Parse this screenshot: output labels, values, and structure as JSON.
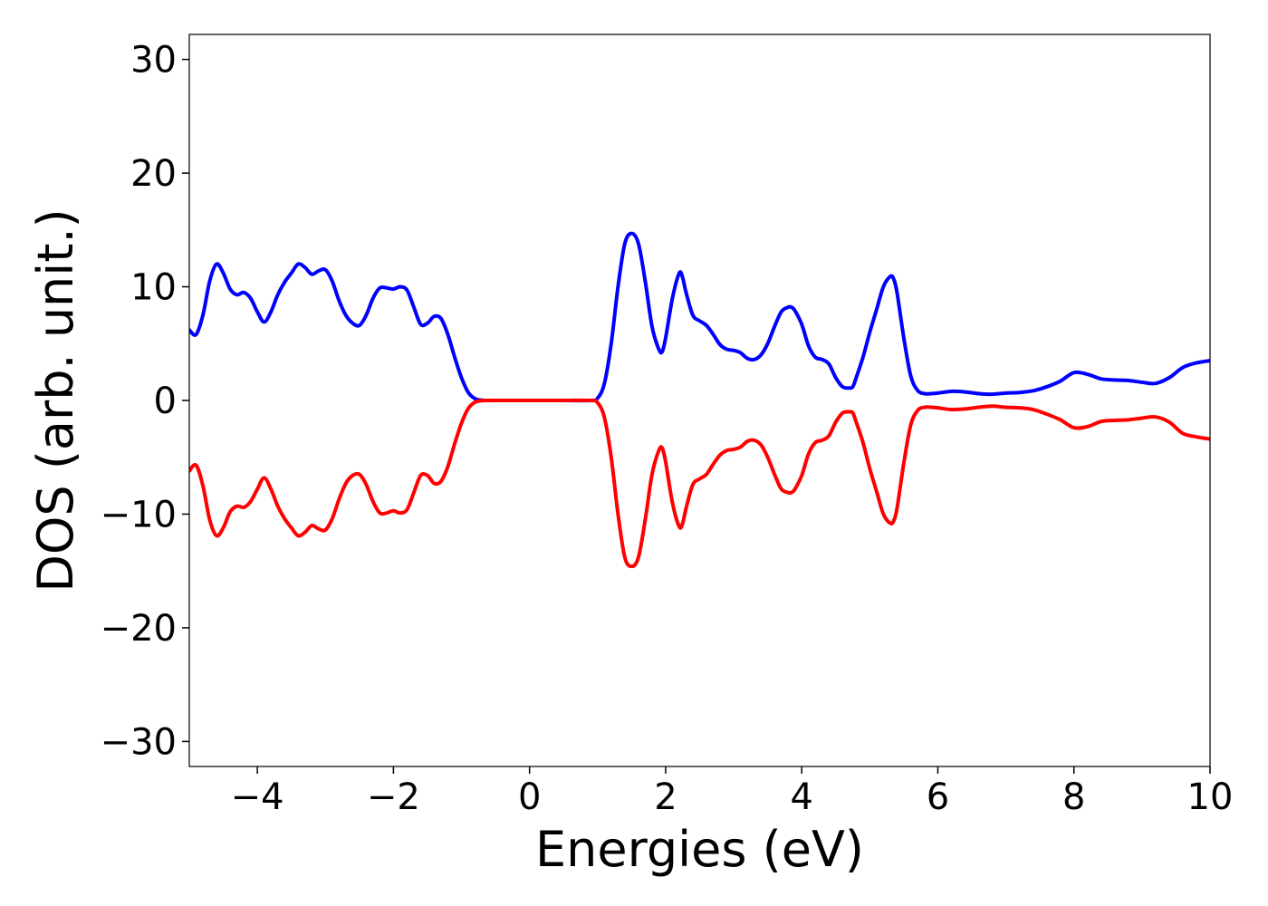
{
  "chart_data": {
    "type": "line",
    "title": "",
    "xlabel": "Energies (eV)",
    "ylabel": "DOS (arb. unit.)",
    "xlim": [
      -5,
      10
    ],
    "ylim": [
      -32.2,
      32.2
    ],
    "xticks": [
      -4,
      -2,
      0,
      2,
      4,
      6,
      8,
      10
    ],
    "xtick_labels": [
      "−4",
      "−2",
      "0",
      "2",
      "4",
      "6",
      "8",
      "10"
    ],
    "yticks": [
      -30,
      -20,
      -10,
      0,
      10,
      20,
      30
    ],
    "ytick_labels": [
      "−30",
      "−20",
      "−10",
      "0",
      "10",
      "20",
      "30"
    ],
    "grid": false,
    "legend": "none",
    "series": [
      {
        "color": "#0000ff",
        "x": [
          -5.0,
          -4.9,
          -4.8,
          -4.7,
          -4.6,
          -4.5,
          -4.4,
          -4.3,
          -4.2,
          -4.1,
          -4.0,
          -3.9,
          -3.8,
          -3.7,
          -3.6,
          -3.5,
          -3.4,
          -3.3,
          -3.2,
          -3.1,
          -3.0,
          -2.9,
          -2.8,
          -2.7,
          -2.6,
          -2.5,
          -2.4,
          -2.3,
          -2.2,
          -2.1,
          -2.0,
          -1.9,
          -1.8,
          -1.7,
          -1.6,
          -1.5,
          -1.4,
          -1.3,
          -1.2,
          -1.1,
          -1.0,
          -0.9,
          -0.8,
          -0.7,
          -0.6,
          -0.5,
          -0.3,
          0.0,
          0.5,
          0.9,
          1.0,
          1.1,
          1.2,
          1.3,
          1.4,
          1.5,
          1.6,
          1.7,
          1.8,
          1.9,
          1.95,
          2.0,
          2.1,
          2.2,
          2.25,
          2.3,
          2.4,
          2.5,
          2.6,
          2.7,
          2.8,
          2.9,
          3.0,
          3.1,
          3.2,
          3.3,
          3.4,
          3.5,
          3.6,
          3.7,
          3.8,
          3.85,
          3.9,
          4.0,
          4.1,
          4.2,
          4.3,
          4.4,
          4.5,
          4.6,
          4.7,
          4.75,
          4.8,
          4.9,
          5.0,
          5.1,
          5.2,
          5.3,
          5.35,
          5.4,
          5.5,
          5.6,
          5.7,
          5.8,
          5.9,
          6.0,
          6.2,
          6.4,
          6.6,
          6.8,
          7.0,
          7.2,
          7.4,
          7.6,
          7.8,
          8.0,
          8.2,
          8.4,
          8.6,
          8.8,
          9.0,
          9.2,
          9.4,
          9.6,
          9.8,
          10.0
        ],
        "y": [
          6.2,
          5.8,
          7.5,
          10.5,
          12.0,
          11.2,
          9.8,
          9.3,
          9.5,
          9.0,
          7.8,
          6.9,
          7.8,
          9.3,
          10.4,
          11.2,
          12.0,
          11.7,
          11.1,
          11.4,
          11.5,
          10.5,
          8.8,
          7.5,
          6.8,
          6.6,
          7.5,
          9.0,
          9.9,
          9.9,
          9.8,
          10.0,
          9.7,
          8.2,
          6.7,
          6.8,
          7.4,
          7.2,
          5.8,
          3.8,
          2.0,
          0.7,
          0.15,
          0.02,
          0.0,
          0.0,
          0.0,
          0.0,
          0.0,
          0.0,
          0.2,
          1.5,
          5.0,
          10.0,
          13.8,
          14.7,
          13.8,
          10.5,
          6.5,
          4.5,
          4.3,
          5.5,
          9.0,
          11.2,
          10.8,
          9.5,
          7.5,
          7.0,
          6.6,
          5.8,
          4.9,
          4.5,
          4.4,
          4.2,
          3.7,
          3.6,
          4.0,
          5.0,
          6.5,
          7.8,
          8.2,
          8.2,
          7.9,
          6.7,
          4.8,
          3.8,
          3.6,
          3.2,
          2.0,
          1.2,
          1.1,
          1.2,
          2.0,
          3.8,
          6.0,
          8.0,
          10.0,
          10.9,
          10.7,
          9.5,
          5.5,
          2.2,
          0.9,
          0.6,
          0.6,
          0.65,
          0.8,
          0.75,
          0.6,
          0.55,
          0.65,
          0.7,
          0.85,
          1.2,
          1.7,
          2.45,
          2.3,
          1.9,
          1.8,
          1.75,
          1.6,
          1.5,
          2.0,
          2.9,
          3.3,
          3.5
        ]
      },
      {
        "color": "#ff0000",
        "x": [
          -5.0,
          -4.9,
          -4.8,
          -4.7,
          -4.6,
          -4.5,
          -4.4,
          -4.3,
          -4.2,
          -4.1,
          -4.0,
          -3.9,
          -3.8,
          -3.7,
          -3.6,
          -3.5,
          -3.4,
          -3.3,
          -3.2,
          -3.1,
          -3.0,
          -2.9,
          -2.8,
          -2.7,
          -2.6,
          -2.5,
          -2.4,
          -2.3,
          -2.2,
          -2.1,
          -2.0,
          -1.9,
          -1.8,
          -1.7,
          -1.6,
          -1.5,
          -1.4,
          -1.3,
          -1.2,
          -1.1,
          -1.0,
          -0.9,
          -0.8,
          -0.7,
          -0.6,
          -0.5,
          -0.3,
          0.0,
          0.5,
          0.9,
          1.0,
          1.1,
          1.2,
          1.3,
          1.4,
          1.5,
          1.6,
          1.7,
          1.8,
          1.9,
          1.95,
          2.0,
          2.1,
          2.2,
          2.25,
          2.3,
          2.4,
          2.5,
          2.6,
          2.7,
          2.8,
          2.9,
          3.0,
          3.1,
          3.2,
          3.3,
          3.4,
          3.5,
          3.6,
          3.7,
          3.8,
          3.85,
          3.9,
          4.0,
          4.1,
          4.2,
          4.3,
          4.4,
          4.5,
          4.6,
          4.7,
          4.75,
          4.8,
          4.9,
          5.0,
          5.1,
          5.2,
          5.3,
          5.35,
          5.4,
          5.5,
          5.6,
          5.7,
          5.8,
          5.9,
          6.0,
          6.2,
          6.4,
          6.6,
          6.8,
          7.0,
          7.2,
          7.4,
          7.6,
          7.8,
          8.0,
          8.2,
          8.4,
          8.6,
          8.8,
          9.0,
          9.2,
          9.4,
          9.6,
          9.8,
          10.0
        ],
        "y": [
          -6.2,
          -5.7,
          -7.5,
          -10.5,
          -11.9,
          -11.2,
          -9.8,
          -9.3,
          -9.4,
          -8.9,
          -7.8,
          -6.8,
          -7.8,
          -9.3,
          -10.4,
          -11.2,
          -11.9,
          -11.6,
          -11.0,
          -11.3,
          -11.4,
          -10.4,
          -8.7,
          -7.3,
          -6.6,
          -6.5,
          -7.4,
          -8.9,
          -9.9,
          -9.9,
          -9.7,
          -9.9,
          -9.6,
          -8.1,
          -6.6,
          -6.6,
          -7.3,
          -7.1,
          -5.8,
          -3.8,
          -2.0,
          -0.7,
          -0.15,
          -0.02,
          0.0,
          0.0,
          0.0,
          0.0,
          0.0,
          0.0,
          -0.2,
          -1.5,
          -5.0,
          -10.0,
          -13.8,
          -14.6,
          -13.8,
          -10.5,
          -6.5,
          -4.4,
          -4.2,
          -5.4,
          -9.0,
          -11.1,
          -10.8,
          -9.5,
          -7.4,
          -6.9,
          -6.5,
          -5.6,
          -4.8,
          -4.4,
          -4.3,
          -4.1,
          -3.6,
          -3.5,
          -3.9,
          -5.0,
          -6.5,
          -7.8,
          -8.1,
          -8.1,
          -7.8,
          -6.6,
          -4.7,
          -3.7,
          -3.5,
          -3.1,
          -1.9,
          -1.1,
          -1.0,
          -1.1,
          -1.9,
          -3.7,
          -6.0,
          -8.0,
          -10.0,
          -10.8,
          -10.6,
          -9.5,
          -5.5,
          -2.2,
          -0.9,
          -0.6,
          -0.6,
          -0.65,
          -0.8,
          -0.75,
          -0.6,
          -0.5,
          -0.6,
          -0.65,
          -0.8,
          -1.2,
          -1.7,
          -2.4,
          -2.3,
          -1.85,
          -1.75,
          -1.7,
          -1.55,
          -1.45,
          -1.9,
          -2.9,
          -3.2,
          -3.4
        ]
      }
    ]
  }
}
